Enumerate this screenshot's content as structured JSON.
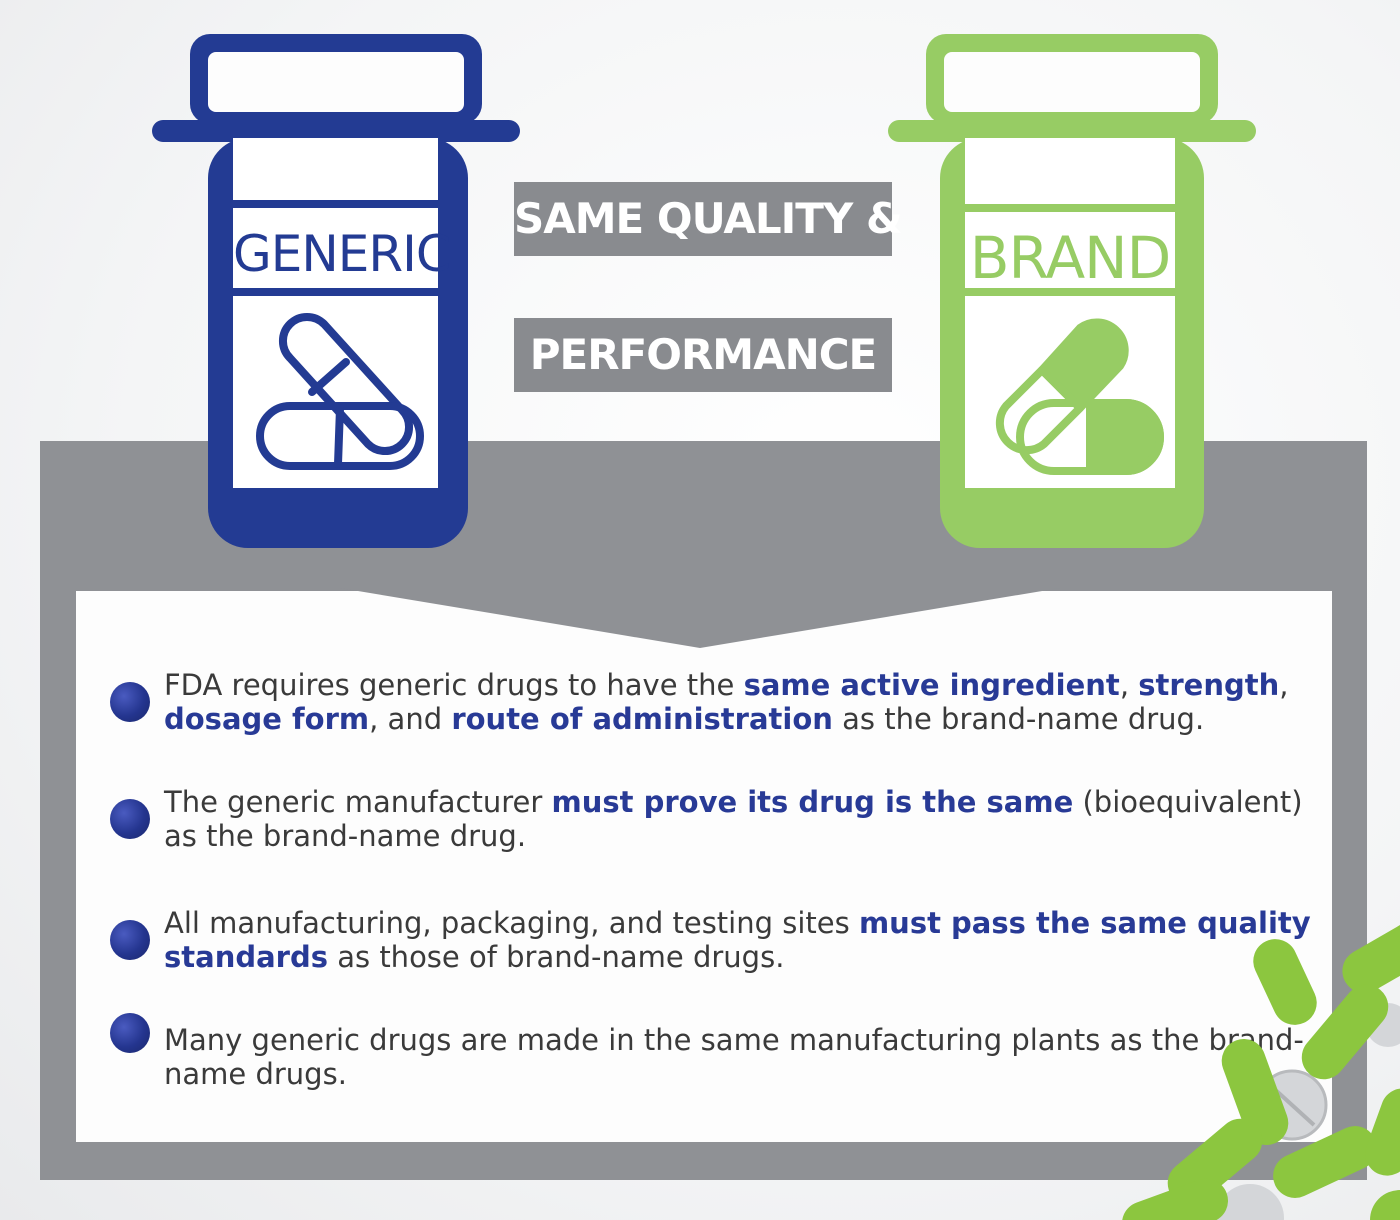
{
  "generic_bottle": {
    "label": "GENERIC",
    "color": "#233b93",
    "icon": "capsule-outline-icon"
  },
  "brand_bottle": {
    "label": "BRAND",
    "color": "#97cc64",
    "icon": "capsule-half-filled-icon"
  },
  "center_tags": {
    "line1": "SAME QUALITY &",
    "line2": "PERFORMANCE",
    "color": "#898b8f"
  },
  "bullets": [
    {
      "parts": [
        {
          "t": "FDA requires generic drugs to have the ",
          "hl": false
        },
        {
          "t": "same active ingredient",
          "hl": true
        },
        {
          "t": ", ",
          "hl": false
        },
        {
          "t": "strength",
          "hl": true
        },
        {
          "t": ", ",
          "hl": false
        },
        {
          "t": "dosage form",
          "hl": true
        },
        {
          "t": ", and ",
          "hl": false
        },
        {
          "t": "route of administration",
          "hl": true
        },
        {
          "t": " as the brand-name drug.",
          "hl": false
        }
      ]
    },
    {
      "parts": [
        {
          "t": "The generic manufacturer ",
          "hl": false
        },
        {
          "t": "must prove its drug is the same",
          "hl": true
        },
        {
          "t": " (bioequivalent) as the brand-name drug.",
          "hl": false
        }
      ]
    },
    {
      "parts": [
        {
          "t": "All manufacturing, packaging, and testing sites ",
          "hl": false
        },
        {
          "t": "must pass the same quality standards",
          "hl": true
        },
        {
          "t": " as those of brand-name drugs.",
          "hl": false
        }
      ]
    },
    {
      "parts": [
        {
          "t": "Many generic drugs are made in the same manufacturing plants as the brand-name drugs.",
          "hl": false
        }
      ]
    }
  ],
  "colors": {
    "highlight": "#283a96",
    "body_text": "#3a3a3a",
    "panel_gray": "#8f9195",
    "pill_green": "#8cc63f",
    "pill_white": "#d9dbdd"
  }
}
